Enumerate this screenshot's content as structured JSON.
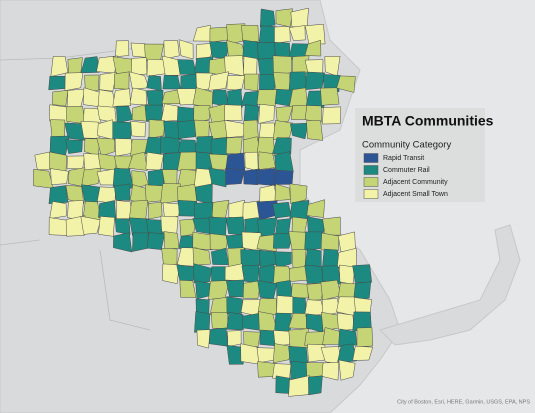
{
  "title": "MBTA Communities",
  "legend": {
    "title": "Community Category",
    "items": [
      {
        "label": "Rapid Transit",
        "color": "#2c5596"
      },
      {
        "label": "Commuter Rail",
        "color": "#1c8a80"
      },
      {
        "label": "Adjacent Community",
        "color": "#c5d575"
      },
      {
        "label": "Adjacent Small Town",
        "color": "#f2f2a8"
      }
    ]
  },
  "attribution": "City of Boston, Esri, HERE, Garmin, USGS, EPA, NPS"
}
